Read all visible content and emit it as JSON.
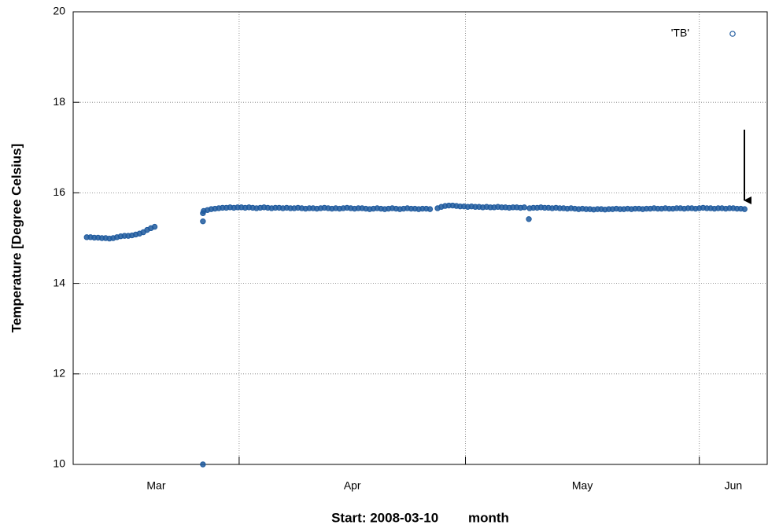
{
  "chart_data": {
    "type": "scatter",
    "ylabel": "Temperature [Degree Celsius]",
    "xlabel": "Start: 2008-03-10        month",
    "xlim": [
      0,
      92
    ],
    "xticks": [
      {
        "value": -9,
        "label": "Mar"
      },
      {
        "value": 22,
        "label": "Apr"
      },
      {
        "value": 52,
        "label": "May"
      },
      {
        "value": 83,
        "label": "Jun"
      }
    ],
    "ylim": [
      10,
      20
    ],
    "yticks": [
      10,
      12,
      14,
      16,
      18,
      20
    ],
    "grid": true,
    "legend": "top-right",
    "series": [
      {
        "name": "'TB'",
        "color": "#1f5a9e",
        "x": [
          1.8,
          2.3,
          2.8,
          3.3,
          3.8,
          4.3,
          4.8,
          5.3,
          5.8,
          6.3,
          6.8,
          7.3,
          7.8,
          8.3,
          8.8,
          9.3,
          9.8,
          10.3,
          10.8,
          17.2,
          17.2,
          17.2,
          17.3,
          17.8,
          18.3,
          18.8,
          19.3,
          19.8,
          20.3,
          20.8,
          21.3,
          21.8,
          22.3,
          22.8,
          23.3,
          23.8,
          24.3,
          24.8,
          25.3,
          25.8,
          26.3,
          26.8,
          27.3,
          27.8,
          28.3,
          28.8,
          29.3,
          29.8,
          30.3,
          30.8,
          31.3,
          31.8,
          32.3,
          32.8,
          33.3,
          33.8,
          34.3,
          34.8,
          35.3,
          35.8,
          36.3,
          36.8,
          37.3,
          37.8,
          38.3,
          38.8,
          39.3,
          39.8,
          40.3,
          40.8,
          41.3,
          41.8,
          42.3,
          42.8,
          43.3,
          43.8,
          44.3,
          44.8,
          45.3,
          45.8,
          46.3,
          46.8,
          47.3,
          48.3,
          48.8,
          49.3,
          49.8,
          50.3,
          50.8,
          51.3,
          51.8,
          52.3,
          52.8,
          53.3,
          53.8,
          54.3,
          54.8,
          55.3,
          55.8,
          56.3,
          56.8,
          57.3,
          57.8,
          58.3,
          58.8,
          59.3,
          59.8,
          60.4,
          60.5,
          61,
          61.5,
          62,
          62.5,
          63,
          63.5,
          64,
          64.5,
          65,
          65.5,
          66,
          66.5,
          67,
          67.5,
          68,
          68.5,
          69,
          69.5,
          70,
          70.5,
          71,
          71.5,
          72,
          72.5,
          73,
          73.5,
          74,
          74.5,
          75,
          75.5,
          76,
          76.5,
          77,
          77.5,
          78,
          78.5,
          79,
          79.5,
          80,
          80.5,
          81,
          81.5,
          82,
          82.5,
          83,
          83.5,
          84,
          84.5,
          85,
          85.5,
          86,
          86.5,
          87,
          87.5,
          88,
          88.5,
          89
        ],
        "values": [
          15.02,
          15.02,
          15.01,
          15.01,
          15.0,
          15.0,
          14.99,
          15.0,
          15.02,
          15.04,
          15.05,
          15.05,
          15.06,
          15.08,
          15.1,
          15.13,
          15.18,
          15.22,
          15.25,
          10.0,
          15.37,
          15.55,
          15.6,
          15.62,
          15.64,
          15.65,
          15.66,
          15.67,
          15.67,
          15.68,
          15.67,
          15.68,
          15.68,
          15.67,
          15.68,
          15.67,
          15.66,
          15.67,
          15.68,
          15.67,
          15.66,
          15.67,
          15.67,
          15.66,
          15.67,
          15.66,
          15.66,
          15.67,
          15.66,
          15.65,
          15.66,
          15.66,
          15.65,
          15.66,
          15.67,
          15.66,
          15.65,
          15.66,
          15.65,
          15.66,
          15.67,
          15.66,
          15.65,
          15.66,
          15.66,
          15.65,
          15.64,
          15.65,
          15.66,
          15.65,
          15.64,
          15.65,
          15.66,
          15.65,
          15.64,
          15.65,
          15.66,
          15.65,
          15.65,
          15.64,
          15.65,
          15.65,
          15.64,
          15.66,
          15.69,
          15.71,
          15.72,
          15.72,
          15.71,
          15.7,
          15.7,
          15.69,
          15.7,
          15.69,
          15.69,
          15.68,
          15.69,
          15.68,
          15.68,
          15.69,
          15.68,
          15.68,
          15.67,
          15.68,
          15.68,
          15.67,
          15.68,
          15.42,
          15.66,
          15.67,
          15.67,
          15.68,
          15.67,
          15.67,
          15.66,
          15.67,
          15.66,
          15.66,
          15.65,
          15.66,
          15.65,
          15.64,
          15.65,
          15.64,
          15.64,
          15.63,
          15.64,
          15.64,
          15.63,
          15.64,
          15.64,
          15.65,
          15.64,
          15.64,
          15.65,
          15.64,
          15.65,
          15.65,
          15.64,
          15.65,
          15.65,
          15.66,
          15.65,
          15.65,
          15.66,
          15.65,
          15.65,
          15.66,
          15.66,
          15.65,
          15.66,
          15.66,
          15.65,
          15.66,
          15.67,
          15.66,
          15.66,
          15.65,
          15.66,
          15.66,
          15.65,
          15.66,
          15.66,
          15.65,
          15.65,
          15.64
        ]
      }
    ]
  }
}
